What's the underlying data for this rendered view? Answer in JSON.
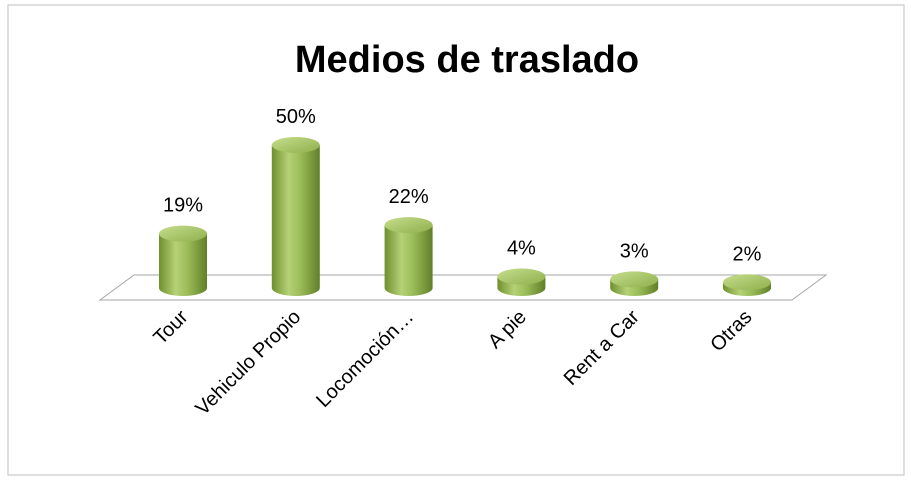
{
  "chart_data": {
    "type": "bar3d",
    "title": "Medios de traslado",
    "categories": [
      "Tour",
      "Vehiculo Propio",
      "Locomoción…",
      "A pie",
      "Rent a Car",
      "Otras"
    ],
    "values": [
      19,
      50,
      22,
      4,
      3,
      2
    ],
    "value_labels": [
      "19%",
      "50%",
      "22%",
      "4%",
      "3%",
      "2%"
    ],
    "color": "#9bbb59"
  }
}
